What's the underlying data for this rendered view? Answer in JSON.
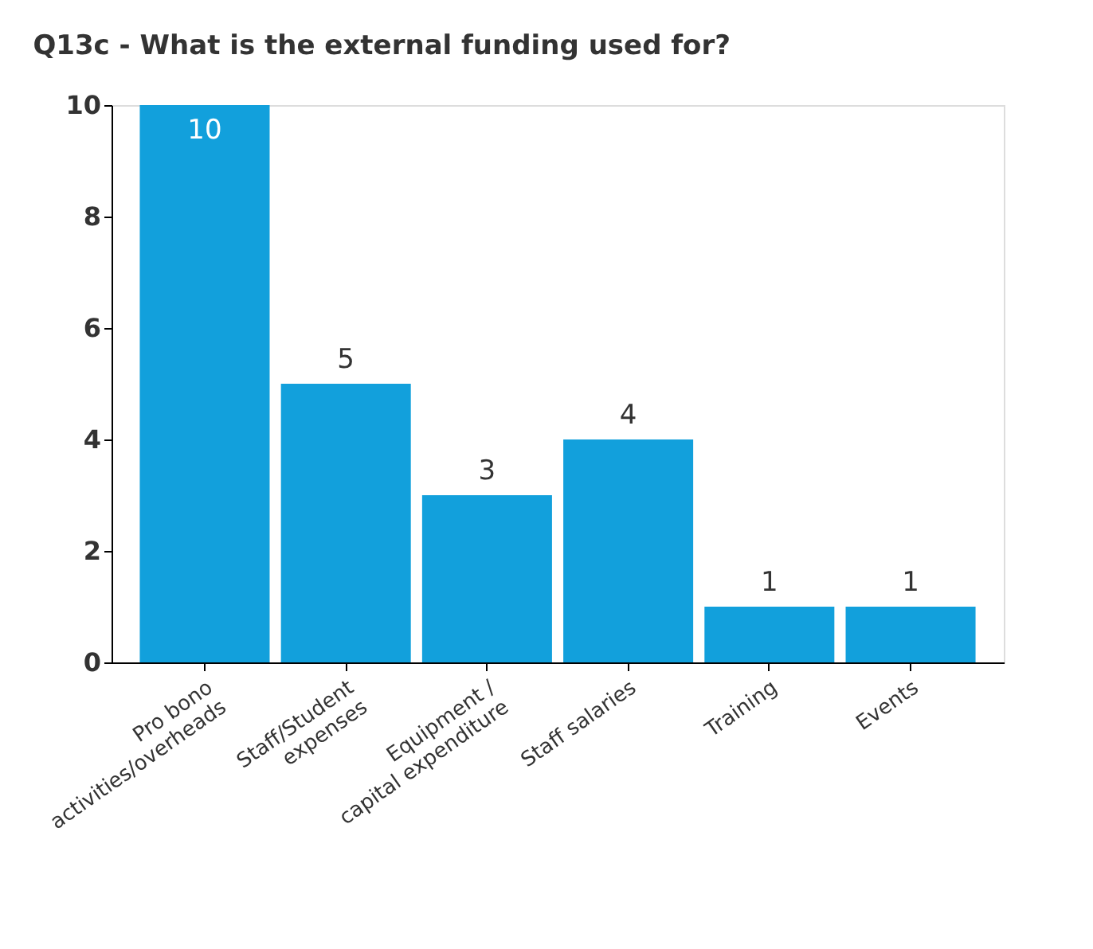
{
  "chart_data": {
    "type": "bar",
    "title": "Q13c - What is the external funding used for?",
    "categories": [
      "Pro bono\nactivities/overheads",
      "Staff/Student\nexpenses",
      "Equipment /\ncapital expenditure",
      "Staff salaries",
      "Training",
      "Events"
    ],
    "values": [
      10,
      5,
      3,
      4,
      1,
      1
    ],
    "color": "#12a0dc",
    "ylim": [
      0,
      10
    ],
    "yticks": [
      0,
      2,
      4,
      6,
      8,
      10
    ],
    "grid": false,
    "data_labels": true
  }
}
